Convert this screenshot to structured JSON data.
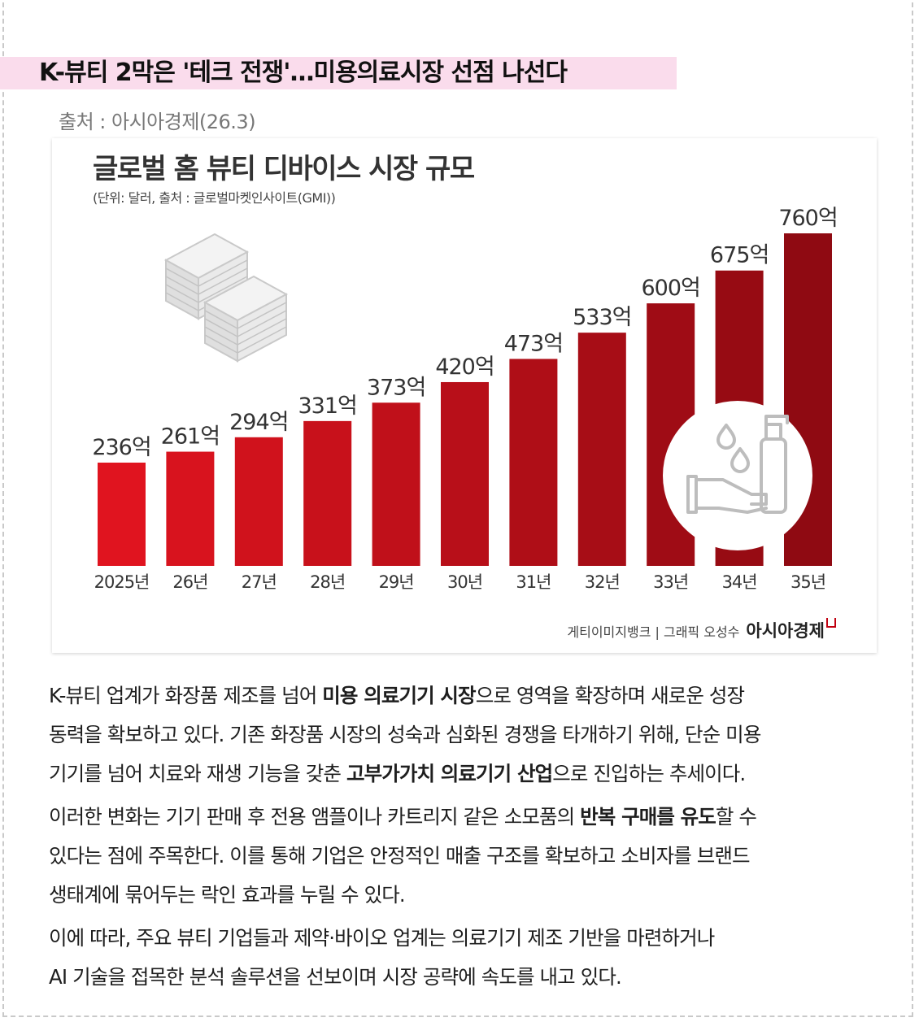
{
  "headline": "K-뷰티 2막은 '테크 전쟁'…미용의료시장 선점 나선다",
  "source": "출처 : 아시아경제(26.3)",
  "chart_data": {
    "type": "bar",
    "title": "글로벌 홈 뷰티 디바이스 시장 규모",
    "subtitle": "(단위: 달러, 출처 : 글로벌마켓인사이트(GMI))",
    "categories": [
      "2025년",
      "26년",
      "27년",
      "28년",
      "29년",
      "30년",
      "31년",
      "32년",
      "33년",
      "34년",
      "35년"
    ],
    "values": [
      236,
      261,
      294,
      331,
      373,
      420,
      473,
      533,
      600,
      675,
      760
    ],
    "value_labels": [
      "236억",
      "261억",
      "294억",
      "331억",
      "373억",
      "420억",
      "473억",
      "533억",
      "600억",
      "675억",
      "760억"
    ],
    "ylim": [
      0,
      760
    ],
    "grid": false,
    "bar_color_start": "#e0141f",
    "bar_color_end": "#8f0a12"
  },
  "credit": {
    "text": "게티이미지뱅크 | 그래픽 오성수",
    "logo": "아시아경제"
  },
  "body": {
    "paragraphs": [
      [
        [
          {
            "t": "K-뷰티 업계가 화장품 제조를 넘어 "
          },
          {
            "t": "미용 의료기기 시장",
            "b": true
          },
          {
            "t": "으로 영역을 확장하며 새로운 성장"
          }
        ],
        [
          {
            "t": "동력을 확보하고 있다. 기존 화장품 시장의 성숙과 심화된 경쟁을 타개하기 위해, 단순 미용"
          }
        ],
        [
          {
            "t": "기기를 넘어 치료와 재생 기능을 갖춘 "
          },
          {
            "t": "고부가가치 의료기기 산업",
            "b": true
          },
          {
            "t": "으로 진입하는 추세이다."
          }
        ]
      ],
      [
        [
          {
            "t": "이러한 변화는 기기 판매 후 전용 앰플이나 카트리지 같은 소모품의 "
          },
          {
            "t": "반복 구매를 유도",
            "b": true
          },
          {
            "t": "할 수"
          }
        ],
        [
          {
            "t": "있다는 점에 주목한다. 이를 통해 기업은 안정적인 매출 구조를 확보하고 소비자를 브랜드"
          }
        ],
        [
          {
            "t": "생태계에 묶어두는 락인 효과를 누릴 수 있다."
          }
        ]
      ],
      [
        [
          {
            "t": "이에 따라, 주요 뷰티 기업들과 제약·바이오 업계는 의료기기 제조 기반을 마련하거나"
          }
        ],
        [
          {
            "t": "AI 기술을 접목한 분석 솔루션을 선보이며 시장 공략에 속도를 내고 있다."
          }
        ]
      ]
    ]
  }
}
